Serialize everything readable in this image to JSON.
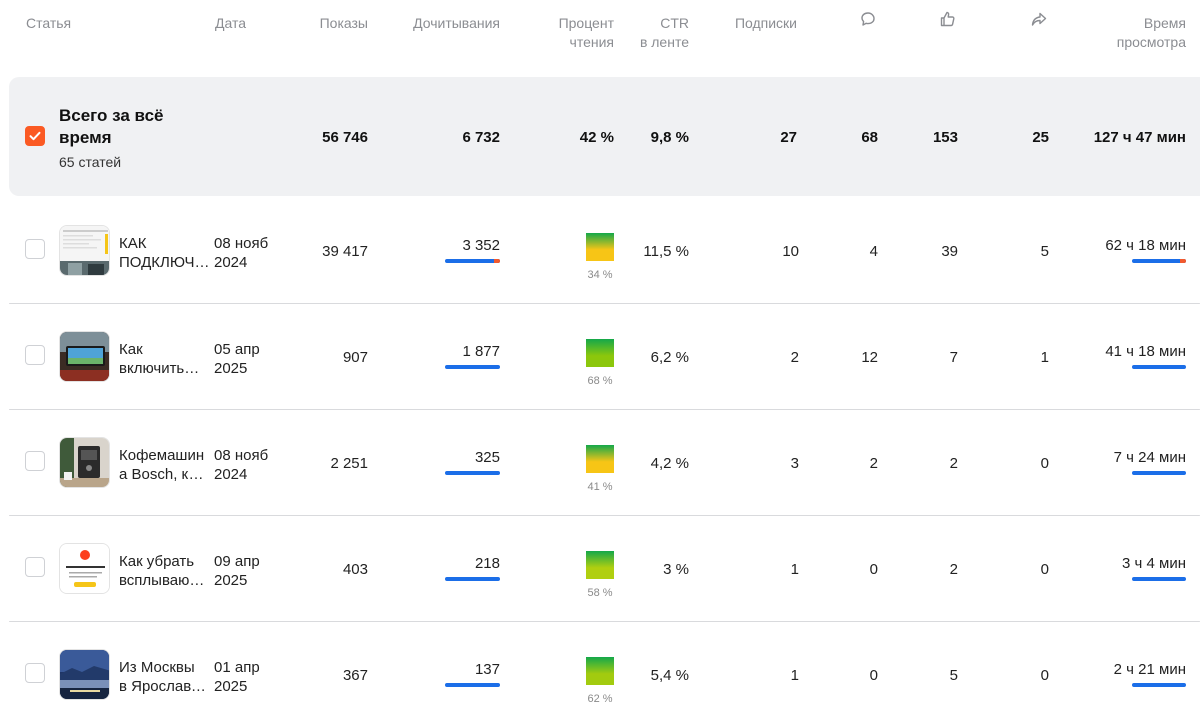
{
  "header": {
    "article": "Статья",
    "date": "Дата",
    "views": "Показы",
    "reads": "Дочитывания",
    "pct_line1": "Процент",
    "pct_line2": "чтения",
    "ctr_line1": "CTR",
    "ctr_line2": "в ленте",
    "subs": "Подписки",
    "time_line1": "Время",
    "time_line2": "просмотра",
    "icons": [
      "comment-icon",
      "like-icon",
      "share-icon"
    ]
  },
  "total": {
    "title": "Всего за всё время",
    "count": "65 статей",
    "views": "56 746",
    "reads": "6 732",
    "pct": "42 %",
    "ctr": "9,8 %",
    "subs": "27",
    "comments": "68",
    "likes": "153",
    "shares": "25",
    "time": "127 ч 47 мин",
    "checked": true
  },
  "rows": [
    {
      "title1": "КАК",
      "title2": "ПОДКЛЮЧ…",
      "date1": "08 нояб",
      "date2": "2024",
      "views": "39 417",
      "reads": "3 352",
      "reads_share": 1.0,
      "pct": "34 %",
      "pct_value": 0.34,
      "pct_color": "#f7c516",
      "ctr": "11,5 %",
      "subs": "10",
      "comments": "4",
      "likes": "39",
      "shares": "5",
      "time": "62 ч 18 мин",
      "time_share": 1.0,
      "accent": true
    },
    {
      "title1": "Как",
      "title2": "включить…",
      "date1": "05 апр",
      "date2": "2025",
      "views": "907",
      "reads": "1 877",
      "reads_share": 1.0,
      "pct": "68 %",
      "pct_value": 0.68,
      "pct_color": "#8cc70c",
      "ctr": "6,2 %",
      "subs": "2",
      "comments": "12",
      "likes": "7",
      "shares": "1",
      "time": "41 ч 18 мин",
      "time_share": 1.0,
      "accent": false
    },
    {
      "title1": "Кофемашин",
      "title2": "а Bosch, ка…",
      "date1": "08 нояб",
      "date2": "2024",
      "views": "2 251",
      "reads": "325",
      "reads_share": 1.0,
      "pct": "41 %",
      "pct_value": 0.41,
      "pct_color": "#f7c516",
      "ctr": "4,2 %",
      "subs": "3",
      "comments": "2",
      "likes": "2",
      "shares": "0",
      "time": "7 ч 24 мин",
      "time_share": 1.0,
      "accent": false
    },
    {
      "title1": "Как убрать",
      "title2": "всплываю…",
      "date1": "09 апр",
      "date2": "2025",
      "views": "403",
      "reads": "218",
      "reads_share": 1.0,
      "pct": "58 %",
      "pct_value": 0.58,
      "pct_color": "#b0cf10",
      "ctr": "3 %",
      "subs": "1",
      "comments": "0",
      "likes": "2",
      "shares": "0",
      "time": "3 ч 4 мин",
      "time_share": 1.0,
      "accent": false
    },
    {
      "title1": "Из Москвы",
      "title2": "в Ярославл…",
      "date1": "01 апр",
      "date2": "2025",
      "views": "367",
      "reads": "137",
      "reads_share": 1.0,
      "pct": "62 %",
      "pct_value": 0.62,
      "pct_color": "#a2cb0f",
      "ctr": "5,4 %",
      "subs": "1",
      "comments": "0",
      "likes": "5",
      "shares": "0",
      "time": "2 ч 21 мин",
      "time_share": 1.0,
      "accent": false
    }
  ]
}
